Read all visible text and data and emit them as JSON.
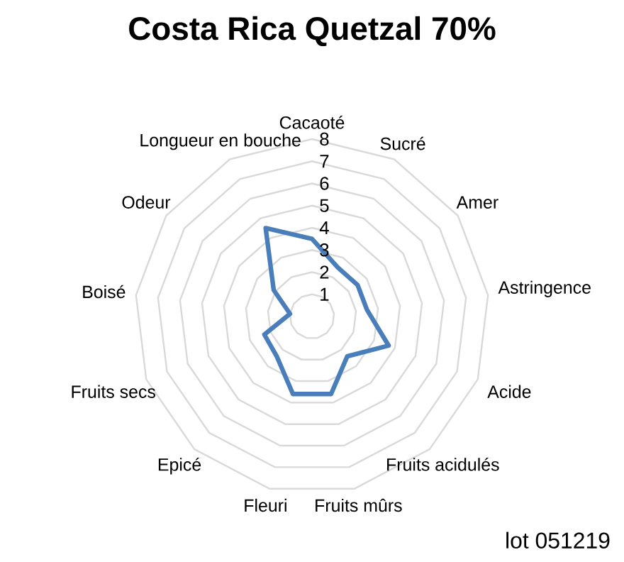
{
  "chart_data": {
    "type": "radar",
    "title": "Costa Rica Quetzal 70%",
    "categories": [
      "Cacaoté",
      "Sucré",
      "Amer",
      "Astringence",
      "Acide",
      "Fruits acidulés",
      "Fruits mûrs",
      "Fleuri",
      "Epicé",
      "Fruits secs",
      "Boisé",
      "Odeur",
      "Longueur en bouche"
    ],
    "series": [
      {
        "color": "#4a7ebb",
        "values": [
          3.5,
          2.5,
          2.5,
          2.5,
          3.7,
          2.4,
          3.6,
          3.6,
          2.4,
          2.3,
          1,
          2.1,
          4.5
        ]
      }
    ],
    "ylim": [
      0,
      8
    ],
    "yticks": [
      1,
      2,
      3,
      4,
      5,
      6,
      7,
      8
    ],
    "grid": true,
    "annotations": [
      "lot 051219"
    ]
  }
}
